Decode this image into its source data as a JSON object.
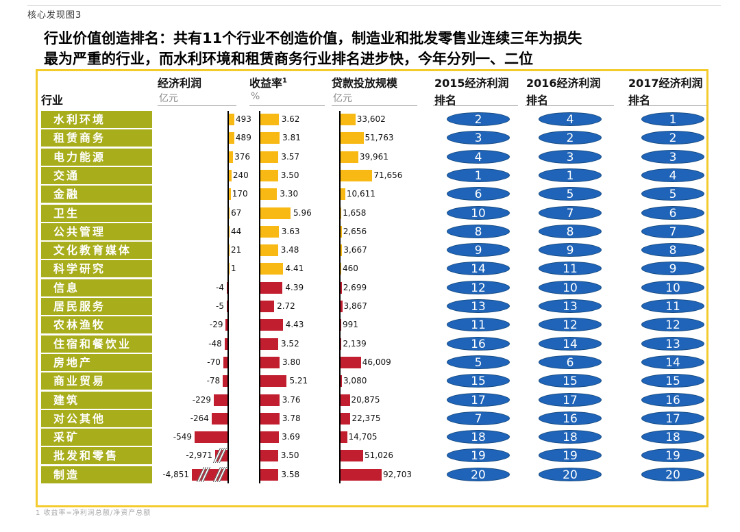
{
  "figure_label": "核心发现图3",
  "title_line1": "行业价值创造排名：共有11个行业不创造价值，制造业和批发零售业连续三年为损失",
  "title_line2": "最为严重的行业，而水利环境和租赁商务行业排名进步快，今年分列一、二位",
  "footnote": "1 收益率=净利润总额/净资产总额",
  "colors": {
    "label_bg": "#a8ad1c",
    "positive_bar": "#f8b914",
    "negative_bar": "#c11e2f",
    "rank_oval": "#1f64b8",
    "frame": "#f3cb2c"
  },
  "chart_data": {
    "type": "table",
    "title": "行业价值创造排名",
    "columns": {
      "industry": {
        "header": "行业"
      },
      "profit": {
        "header": "经济利润",
        "unit": "亿元"
      },
      "yield": {
        "header": "收益率",
        "sup": "1",
        "unit": "%"
      },
      "loans": {
        "header": "贷款投放规模",
        "unit": "亿元"
      },
      "rank2015": {
        "header_1": "2015经济利润",
        "header_2": "排名"
      },
      "rank2016": {
        "header_1": "2016经济利润",
        "header_2": "排名"
      },
      "rank2017": {
        "header_1": "2017经济利润",
        "header_2": "排名"
      }
    },
    "rows": [
      {
        "industry": "水利环境",
        "profit": 493,
        "profit_label": "493",
        "yield": 3.62,
        "yield_label": "3.62",
        "loans": 33602,
        "loans_label": "33,602",
        "rank2015": 2,
        "rank2016": 4,
        "rank2017": 1
      },
      {
        "industry": "租赁商务",
        "profit": 489,
        "profit_label": "489",
        "yield": 3.81,
        "yield_label": "3.81",
        "loans": 51763,
        "loans_label": "51,763",
        "rank2015": 3,
        "rank2016": 2,
        "rank2017": 2
      },
      {
        "industry": "电力能源",
        "profit": 376,
        "profit_label": "376",
        "yield": 3.57,
        "yield_label": "3.57",
        "loans": 39961,
        "loans_label": "39,961",
        "rank2015": 4,
        "rank2016": 3,
        "rank2017": 3
      },
      {
        "industry": "交通",
        "profit": 240,
        "profit_label": "240",
        "yield": 3.5,
        "yield_label": "3.50",
        "loans": 71656,
        "loans_label": "71,656",
        "rank2015": 1,
        "rank2016": 1,
        "rank2017": 4
      },
      {
        "industry": "金融",
        "profit": 170,
        "profit_label": "170",
        "yield": 3.3,
        "yield_label": "3.30",
        "loans": 10611,
        "loans_label": "10,611",
        "rank2015": 6,
        "rank2016": 5,
        "rank2017": 5
      },
      {
        "industry": "卫生",
        "profit": 67,
        "profit_label": "67",
        "yield": 5.96,
        "yield_label": "5.96",
        "loans": 1658,
        "loans_label": "1,658",
        "rank2015": 10,
        "rank2016": 7,
        "rank2017": 6
      },
      {
        "industry": "公共管理",
        "profit": 44,
        "profit_label": "44",
        "yield": 3.63,
        "yield_label": "3.63",
        "loans": 2656,
        "loans_label": "2,656",
        "rank2015": 8,
        "rank2016": 8,
        "rank2017": 7
      },
      {
        "industry": "文化教育媒体",
        "profit": 21,
        "profit_label": "21",
        "yield": 3.48,
        "yield_label": "3.48",
        "loans": 3667,
        "loans_label": "3,667",
        "rank2015": 9,
        "rank2016": 9,
        "rank2017": 8
      },
      {
        "industry": "科学研究",
        "profit": 1,
        "profit_label": "1",
        "yield": 4.41,
        "yield_label": "4.41",
        "loans": 460,
        "loans_label": "460",
        "rank2015": 14,
        "rank2016": 11,
        "rank2017": 9
      },
      {
        "industry": "信息",
        "profit": -4,
        "profit_label": "-4",
        "yield": 4.39,
        "yield_label": "4.39",
        "loans": 2699,
        "loans_label": "2,699",
        "rank2015": 12,
        "rank2016": 10,
        "rank2017": 10
      },
      {
        "industry": "居民服务",
        "profit": -5,
        "profit_label": "-5",
        "yield": 2.72,
        "yield_label": "2.72",
        "loans": 3867,
        "loans_label": "3,867",
        "rank2015": 13,
        "rank2016": 13,
        "rank2017": 11
      },
      {
        "industry": "农林渔牧",
        "profit": -29,
        "profit_label": "-29",
        "yield": 4.43,
        "yield_label": "4.43",
        "loans": 991,
        "loans_label": "991",
        "rank2015": 11,
        "rank2016": 12,
        "rank2017": 12
      },
      {
        "industry": "住宿和餐饮业",
        "profit": -48,
        "profit_label": "-48",
        "yield": 3.52,
        "yield_label": "3.52",
        "loans": 2139,
        "loans_label": "2,139",
        "rank2015": 16,
        "rank2016": 14,
        "rank2017": 13
      },
      {
        "industry": "房地产",
        "profit": -70,
        "profit_label": "-70",
        "yield": 3.8,
        "yield_label": "3.80",
        "loans": 46009,
        "loans_label": "46,009",
        "rank2015": 5,
        "rank2016": 6,
        "rank2017": 14
      },
      {
        "industry": "商业贸易",
        "profit": -78,
        "profit_label": "-78",
        "yield": 5.21,
        "yield_label": "5.21",
        "loans": 3080,
        "loans_label": "3,080",
        "rank2015": 15,
        "rank2016": 15,
        "rank2017": 15
      },
      {
        "industry": "建筑",
        "profit": -229,
        "profit_label": "-229",
        "yield": 3.76,
        "yield_label": "3.76",
        "loans": 20875,
        "loans_label": "20,875",
        "rank2015": 17,
        "rank2016": 17,
        "rank2017": 16
      },
      {
        "industry": "对公其他",
        "profit": -264,
        "profit_label": "-264",
        "yield": 3.78,
        "yield_label": "3.78",
        "loans": 22375,
        "loans_label": "22,375",
        "rank2015": 7,
        "rank2016": 16,
        "rank2017": 17
      },
      {
        "industry": "采矿",
        "profit": -549,
        "profit_label": "-549",
        "yield": 3.69,
        "yield_label": "3.69",
        "loans": 14705,
        "loans_label": "14,705",
        "rank2015": 18,
        "rank2016": 18,
        "rank2017": 18
      },
      {
        "industry": "批发和零售",
        "profit": -2971,
        "profit_label": "-2,971",
        "yield": 3.5,
        "yield_label": "3.50",
        "loans": 51026,
        "loans_label": "51,026",
        "rank2015": 19,
        "rank2016": 19,
        "rank2017": 19,
        "axis_break": true
      },
      {
        "industry": "制造",
        "profit": -4851,
        "profit_label": "-4,851",
        "yield": 3.58,
        "yield_label": "3.58",
        "loans": 92703,
        "loans_label": "92,703",
        "rank2015": 20,
        "rank2016": 20,
        "rank2017": 20,
        "axis_break": true
      }
    ]
  }
}
